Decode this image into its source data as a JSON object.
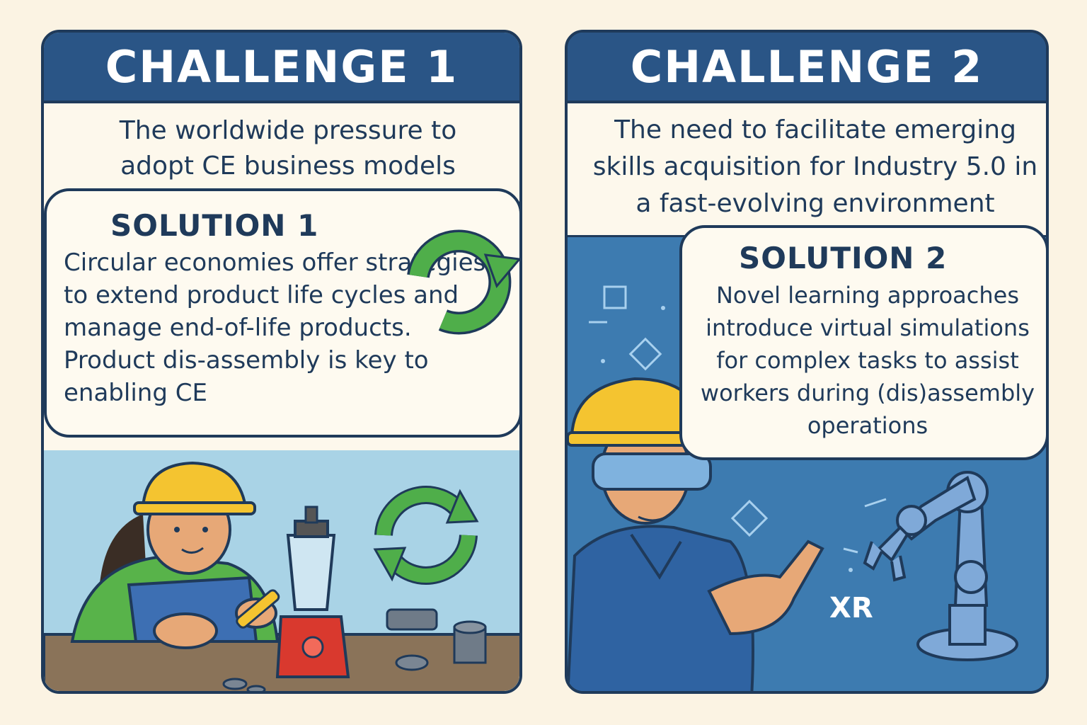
{
  "cards": [
    {
      "header": "CHALLENGE 1",
      "challenge_text": "The worldwide pressure to adopt CE business models",
      "solution_title": "SOLUTION 1",
      "solution_text": "Circular economies offer strategies to extend product life cycles and manage end-of-life products. Product dis-assembly is key to enabling CE",
      "illustration": "worker-disassembling-blender",
      "icons": [
        "recycle-arrows-icon",
        "recycle-arrows-icon"
      ]
    },
    {
      "header": "CHALLENGE 2",
      "challenge_text": "The need to facilitate emerging skills acquisition for Industry 5.0 in a fast-evolving environment",
      "solution_title": "SOLUTION 2",
      "solution_text": "Novel learning approaches introduce virtual simulations for complex tasks to assist workers during (dis)assembly operations",
      "illustration": "worker-with-xr-goggles-and-robot-arm",
      "label": "XR"
    }
  ],
  "colors": {
    "background": "#fbf3e3",
    "header": "#2a5586",
    "outline": "#1f3a5a",
    "scene1": "#a9d3e6",
    "scene2": "#3d7bb0",
    "recycle_green": "#4fae4a",
    "helmet_yellow": "#f4c430"
  }
}
